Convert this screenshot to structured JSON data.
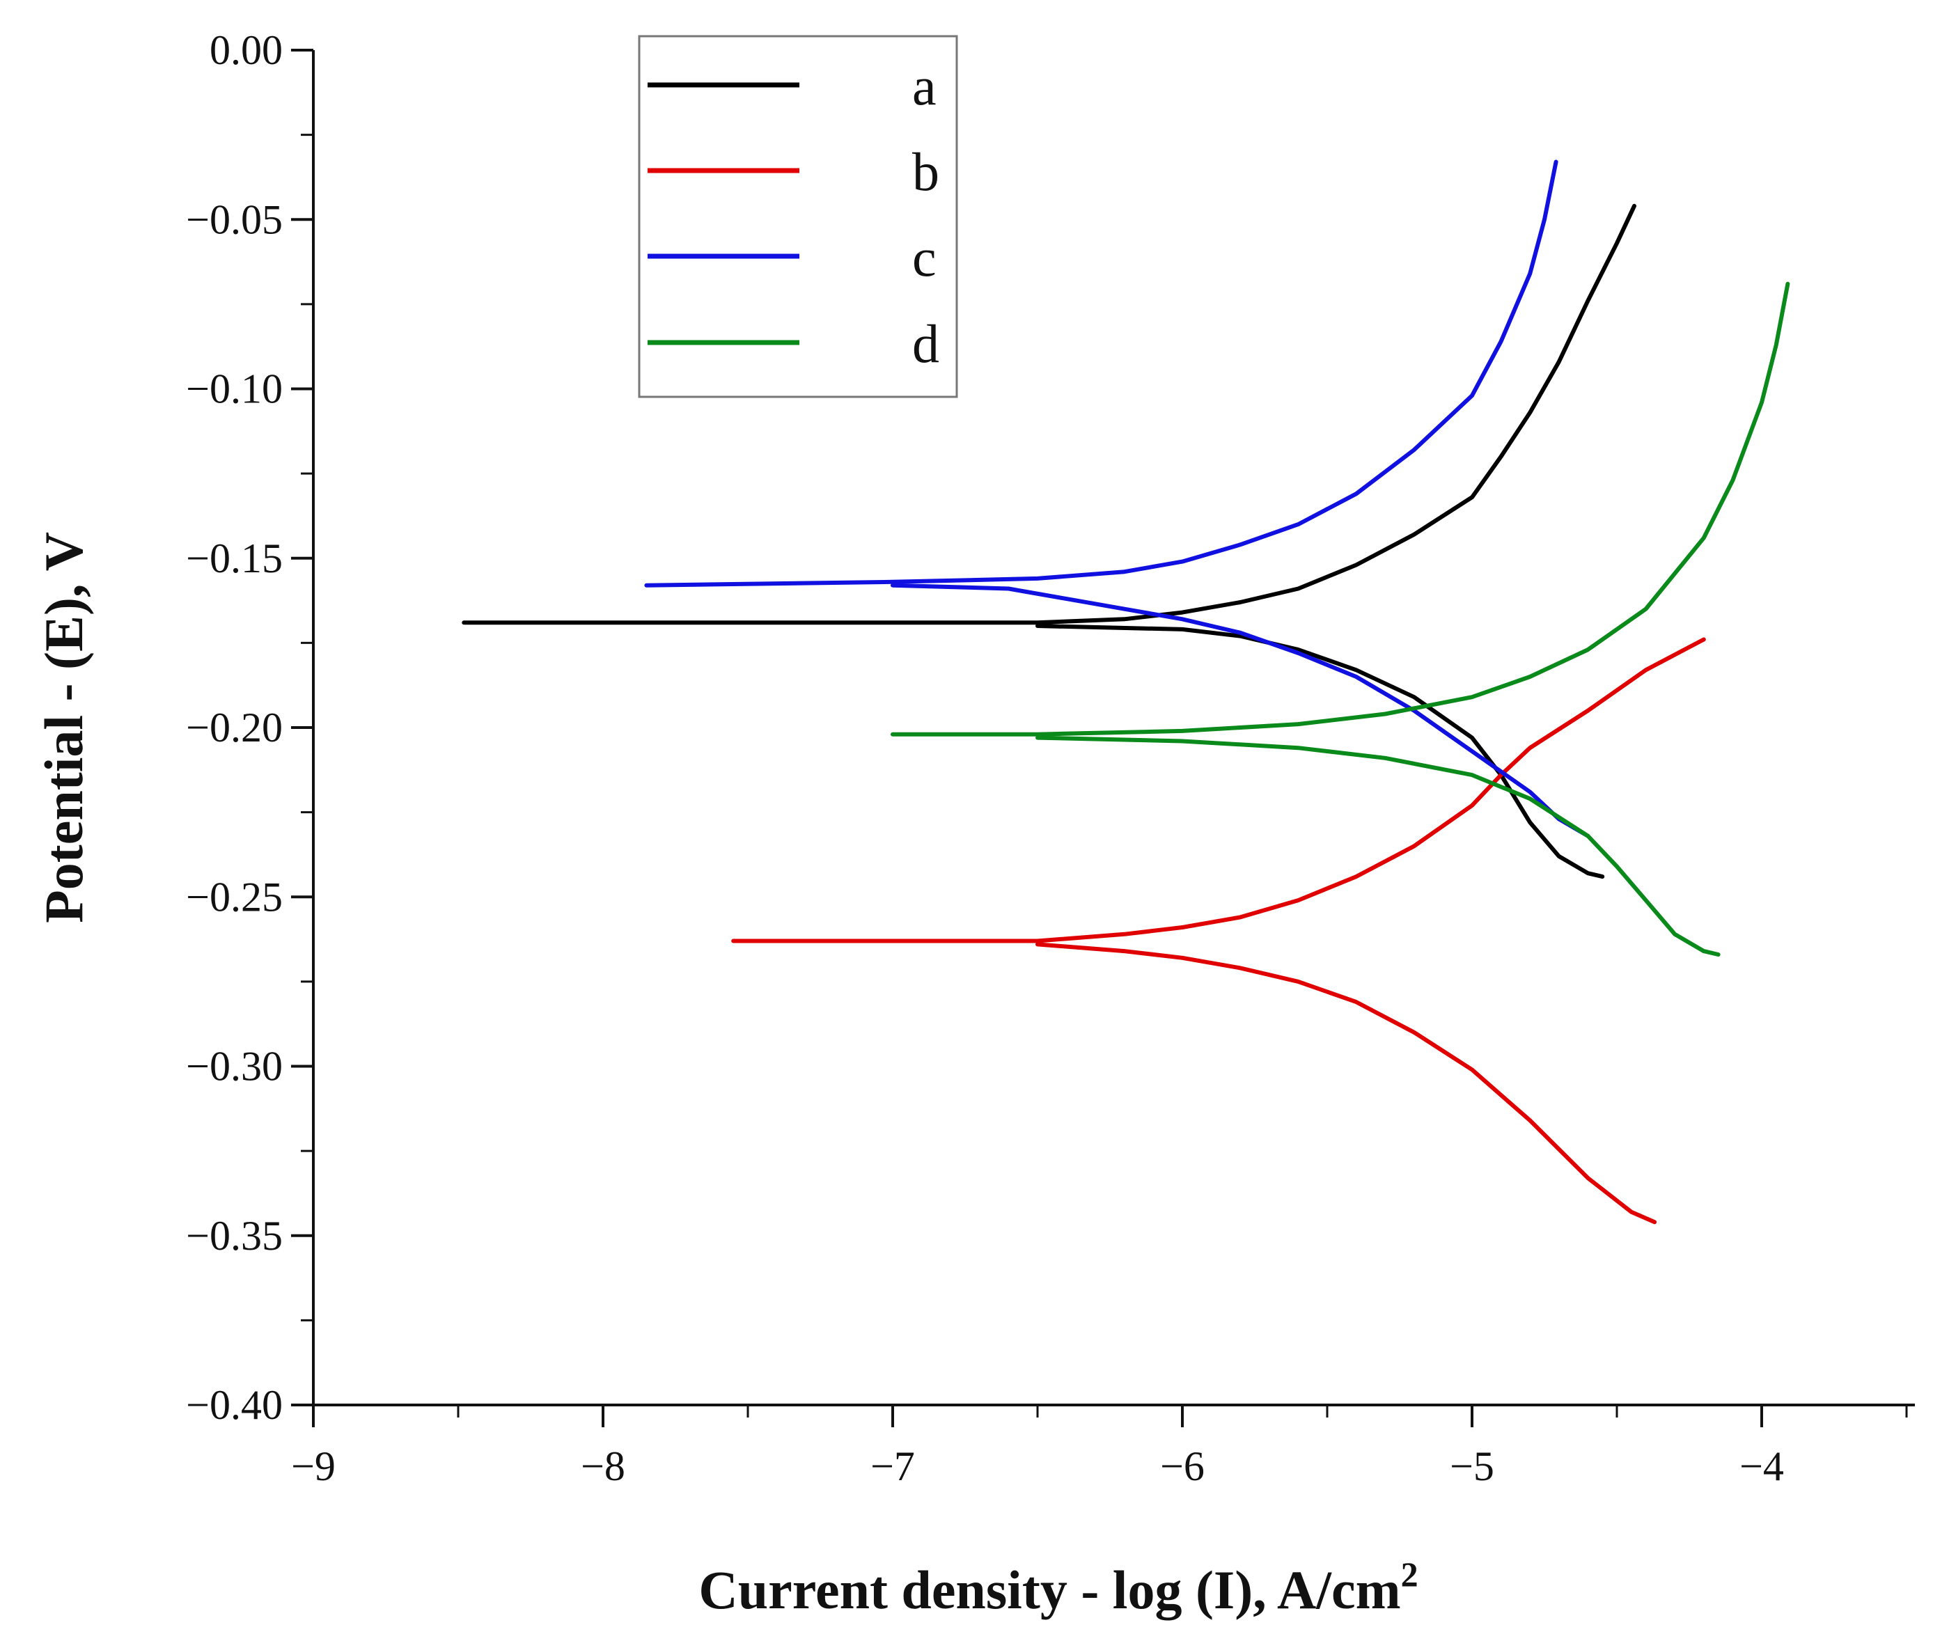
{
  "chart_data": {
    "type": "line",
    "title": "",
    "xlabel": "Current density - log (I), A/cm",
    "xlabel_superscript": "2",
    "ylabel": "Potential - (E), V",
    "xlim": [
      -9,
      -3.55
    ],
    "ylim": [
      -0.4,
      0.0
    ],
    "grid": false,
    "legend_position": "top-left",
    "x_ticks": [
      -9,
      -8,
      -7,
      -6,
      -5,
      -4
    ],
    "x_tick_labels": [
      "−9",
      "−8",
      "−7",
      "−6",
      "−5",
      "−4"
    ],
    "y_ticks": [
      0.0,
      -0.05,
      -0.1,
      -0.15,
      -0.2,
      -0.25,
      -0.3,
      -0.35,
      -0.4
    ],
    "y_tick_labels": [
      "0.00",
      "−0.05",
      "−0.10",
      "−0.15",
      "−0.20",
      "−0.25",
      "−0.30",
      "−0.35",
      "−0.40"
    ],
    "series": [
      {
        "name": "a",
        "color": "#000000",
        "corrosion_potential": -0.169,
        "anodic": [
          [
            -8.48,
            -0.169
          ],
          [
            -7.5,
            -0.169
          ],
          [
            -7.0,
            -0.169
          ],
          [
            -6.5,
            -0.169
          ],
          [
            -6.2,
            -0.168
          ],
          [
            -6.0,
            -0.166
          ],
          [
            -5.8,
            -0.163
          ],
          [
            -5.6,
            -0.159
          ],
          [
            -5.4,
            -0.152
          ],
          [
            -5.2,
            -0.143
          ],
          [
            -5.0,
            -0.132
          ],
          [
            -4.9,
            -0.12
          ],
          [
            -4.8,
            -0.107
          ],
          [
            -4.7,
            -0.092
          ],
          [
            -4.6,
            -0.074
          ],
          [
            -4.5,
            -0.057
          ],
          [
            -4.44,
            -0.046
          ]
        ],
        "cathodic": [
          [
            -6.5,
            -0.17
          ],
          [
            -6.0,
            -0.171
          ],
          [
            -5.8,
            -0.173
          ],
          [
            -5.6,
            -0.177
          ],
          [
            -5.4,
            -0.183
          ],
          [
            -5.2,
            -0.191
          ],
          [
            -5.0,
            -0.203
          ],
          [
            -4.9,
            -0.214
          ],
          [
            -4.8,
            -0.228
          ],
          [
            -4.7,
            -0.238
          ],
          [
            -4.6,
            -0.243
          ],
          [
            -4.55,
            -0.244
          ]
        ]
      },
      {
        "name": "b",
        "color": "#e00000",
        "corrosion_potential": -0.263,
        "anodic": [
          [
            -7.55,
            -0.263
          ],
          [
            -7.0,
            -0.263
          ],
          [
            -6.5,
            -0.263
          ],
          [
            -6.2,
            -0.261
          ],
          [
            -6.0,
            -0.259
          ],
          [
            -5.8,
            -0.256
          ],
          [
            -5.6,
            -0.251
          ],
          [
            -5.4,
            -0.244
          ],
          [
            -5.2,
            -0.235
          ],
          [
            -5.0,
            -0.223
          ],
          [
            -4.9,
            -0.214
          ],
          [
            -4.8,
            -0.206
          ],
          [
            -4.6,
            -0.195
          ],
          [
            -4.4,
            -0.183
          ],
          [
            -4.2,
            -0.174
          ]
        ],
        "cathodic": [
          [
            -6.5,
            -0.264
          ],
          [
            -6.2,
            -0.266
          ],
          [
            -6.0,
            -0.268
          ],
          [
            -5.8,
            -0.271
          ],
          [
            -5.6,
            -0.275
          ],
          [
            -5.4,
            -0.281
          ],
          [
            -5.2,
            -0.29
          ],
          [
            -5.0,
            -0.301
          ],
          [
            -4.8,
            -0.316
          ],
          [
            -4.6,
            -0.333
          ],
          [
            -4.45,
            -0.343
          ],
          [
            -4.37,
            -0.346
          ]
        ]
      },
      {
        "name": "c",
        "color": "#1010e0",
        "corrosion_potential": -0.158,
        "anodic": [
          [
            -7.85,
            -0.158
          ],
          [
            -7.0,
            -0.157
          ],
          [
            -6.5,
            -0.156
          ],
          [
            -6.2,
            -0.154
          ],
          [
            -6.0,
            -0.151
          ],
          [
            -5.8,
            -0.146
          ],
          [
            -5.6,
            -0.14
          ],
          [
            -5.4,
            -0.131
          ],
          [
            -5.2,
            -0.118
          ],
          [
            -5.0,
            -0.102
          ],
          [
            -4.9,
            -0.086
          ],
          [
            -4.8,
            -0.066
          ],
          [
            -4.75,
            -0.05
          ],
          [
            -4.71,
            -0.033
          ]
        ],
        "cathodic": [
          [
            -7.0,
            -0.158
          ],
          [
            -6.6,
            -0.159
          ],
          [
            -6.4,
            -0.162
          ],
          [
            -6.2,
            -0.165
          ],
          [
            -6.0,
            -0.168
          ],
          [
            -5.8,
            -0.172
          ],
          [
            -5.6,
            -0.178
          ],
          [
            -5.4,
            -0.185
          ],
          [
            -5.2,
            -0.195
          ],
          [
            -5.0,
            -0.207
          ],
          [
            -4.8,
            -0.219
          ],
          [
            -4.7,
            -0.227
          ],
          [
            -4.6,
            -0.232
          ]
        ]
      },
      {
        "name": "d",
        "color": "#0a8a1a",
        "corrosion_potential": -0.202,
        "anodic": [
          [
            -7.0,
            -0.202
          ],
          [
            -6.5,
            -0.202
          ],
          [
            -6.0,
            -0.201
          ],
          [
            -5.6,
            -0.199
          ],
          [
            -5.3,
            -0.196
          ],
          [
            -5.0,
            -0.191
          ],
          [
            -4.8,
            -0.185
          ],
          [
            -4.6,
            -0.177
          ],
          [
            -4.4,
            -0.165
          ],
          [
            -4.2,
            -0.144
          ],
          [
            -4.1,
            -0.127
          ],
          [
            -4.0,
            -0.104
          ],
          [
            -3.95,
            -0.087
          ],
          [
            -3.91,
            -0.069
          ]
        ],
        "cathodic": [
          [
            -6.5,
            -0.203
          ],
          [
            -6.0,
            -0.204
          ],
          [
            -5.6,
            -0.206
          ],
          [
            -5.3,
            -0.209
          ],
          [
            -5.0,
            -0.214
          ],
          [
            -4.8,
            -0.221
          ],
          [
            -4.6,
            -0.232
          ],
          [
            -4.5,
            -0.241
          ],
          [
            -4.4,
            -0.251
          ],
          [
            -4.3,
            -0.261
          ],
          [
            -4.2,
            -0.266
          ],
          [
            -4.15,
            -0.267
          ]
        ]
      }
    ]
  }
}
